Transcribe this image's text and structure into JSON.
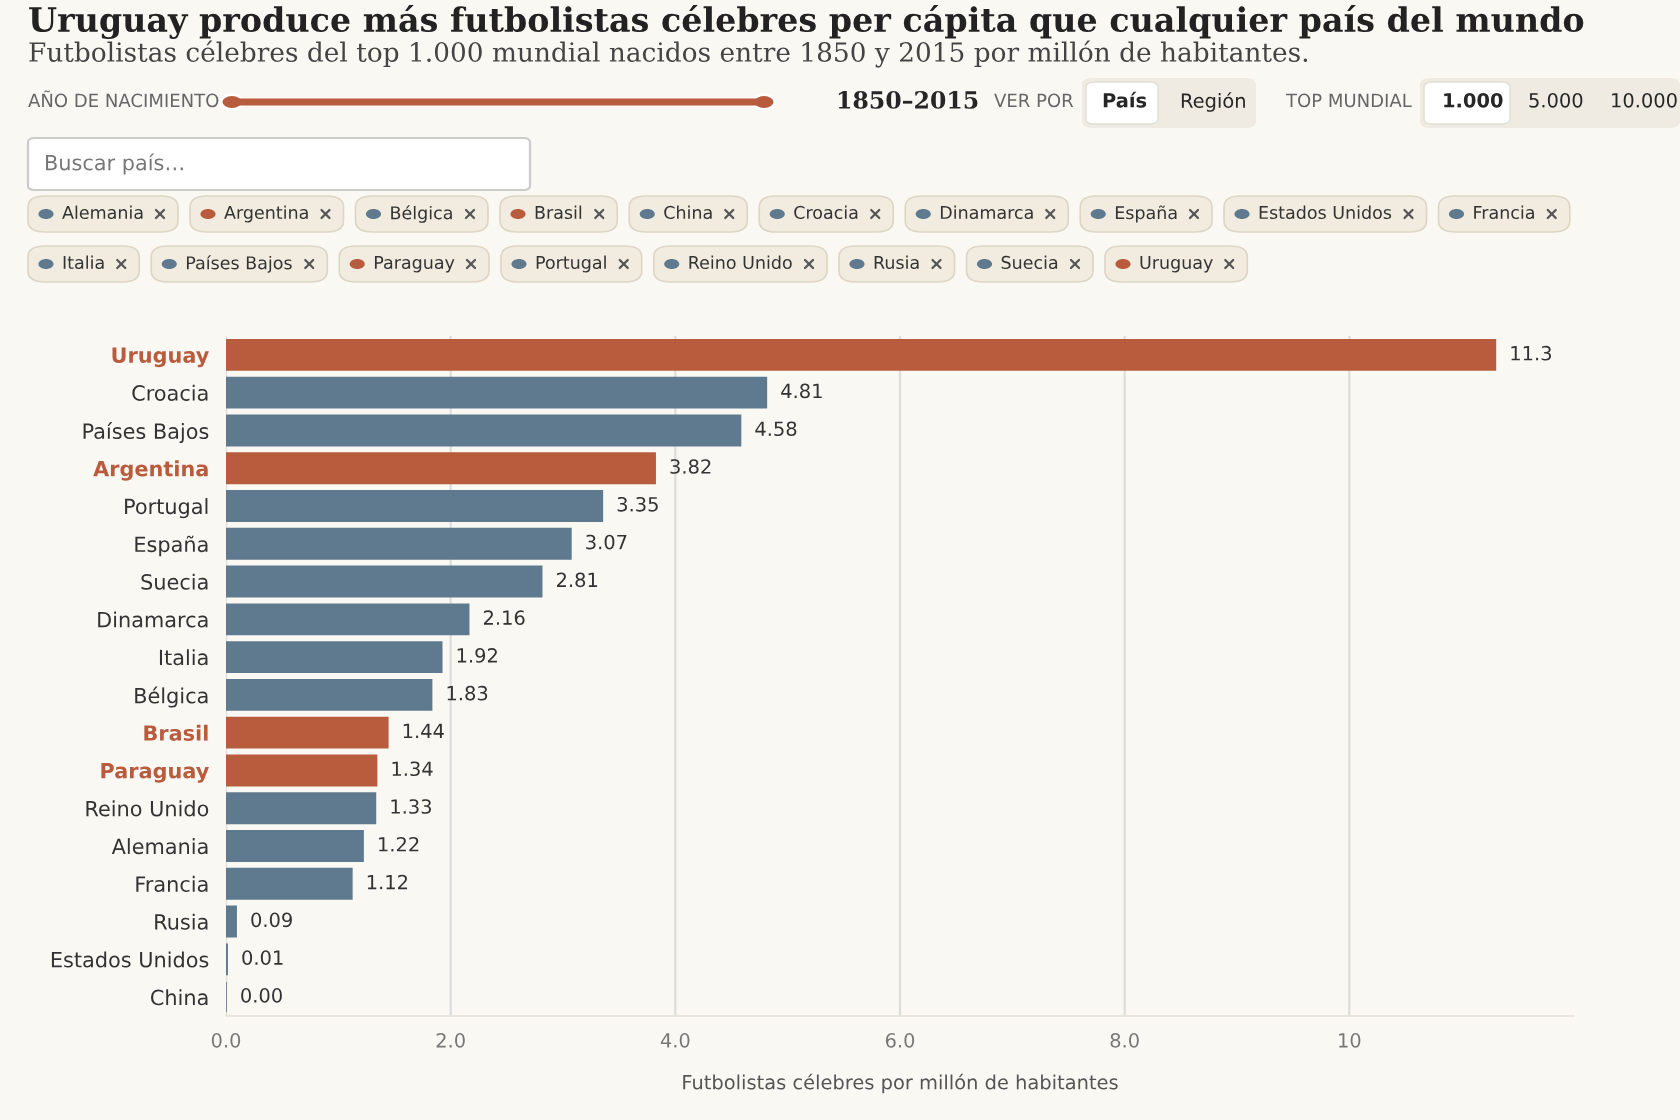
{
  "chart_data": {
    "type": "bar",
    "orientation": "horizontal",
    "title": "Uruguay produce más futbolistas célebres per cápita que cualquier país del mundo",
    "subtitle": "Futbolistas célebres del top 1.000 mundial nacidos entre 1850 y 2015 por millón de habitantes.",
    "xlabel": "Futbolistas célebres por millón de habitantes",
    "categories": [
      "Uruguay",
      "Croacia",
      "Países Bajos",
      "Argentina",
      "Portugal",
      "España",
      "Suecia",
      "Dinamarca",
      "Italia",
      "Bélgica",
      "Brasil",
      "Paraguay",
      "Reino Unido",
      "Alemania",
      "Francia",
      "Rusia",
      "Estados Unidos",
      "China"
    ],
    "values": [
      11.3,
      4.81,
      4.58,
      3.82,
      3.35,
      3.07,
      2.81,
      2.16,
      1.92,
      1.83,
      1.44,
      1.34,
      1.33,
      1.22,
      1.12,
      0.09,
      0.01,
      0.0
    ],
    "value_labels": [
      "11.3",
      "4.81",
      "4.58",
      "3.82",
      "3.35",
      "3.07",
      "2.81",
      "2.16",
      "1.92",
      "1.83",
      "1.44",
      "1.34",
      "1.33",
      "1.22",
      "1.12",
      "0.09",
      "0.01",
      "0.00"
    ],
    "colors": [
      "#b95c3e",
      "#5f7a8f",
      "#5f7a8f",
      "#b95c3e",
      "#5f7a8f",
      "#5f7a8f",
      "#5f7a8f",
      "#5f7a8f",
      "#5f7a8f",
      "#5f7a8f",
      "#b95c3e",
      "#b95c3e",
      "#5f7a8f",
      "#5f7a8f",
      "#5f7a8f",
      "#5f7a8f",
      "#5f7a8f",
      "#5f7a8f"
    ],
    "xlim": [
      0,
      12
    ],
    "xticks": [
      {
        "value": 0,
        "label": "0.0"
      },
      {
        "value": 2,
        "label": "2.0"
      },
      {
        "value": 4,
        "label": "4.0"
      },
      {
        "value": 6,
        "label": "6.0"
      },
      {
        "value": 8,
        "label": "8.0"
      },
      {
        "value": 10,
        "label": "10"
      }
    ],
    "grid": "x",
    "legend": false,
    "annotations": [
      "AÑO DE NACIMIENTO",
      "1850–2015",
      "VER POR",
      "País",
      "Región",
      "TOP MUNDIAL",
      "1.000",
      "5.000",
      "10.000",
      "Buscar país…",
      "Alemania",
      "Argentina",
      "Bélgica",
      "Brasil",
      "China",
      "Croacia",
      "Dinamarca",
      "España",
      "Estados Unidos",
      "Francia",
      "Italia",
      "Países Bajos",
      "Paraguay",
      "Portugal",
      "Reino Unido",
      "Rusia",
      "Suecia",
      "Uruguay"
    ]
  }
}
